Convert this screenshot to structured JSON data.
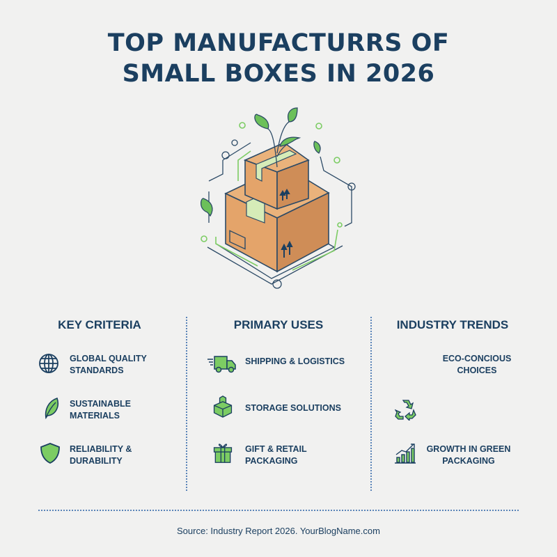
{
  "title": {
    "line1": "TOP MANUFACTURRS OF",
    "line2": "SMALL BOXES IN 2026"
  },
  "colors": {
    "navy": "#1b3f60",
    "green": "#6cc05a",
    "cardboard": "#e0a36a",
    "background": "#f1f1f0"
  },
  "columns": [
    {
      "heading": "KEY CRITERIA",
      "items": [
        {
          "icon": "globe-icon",
          "line1": "GLOBAL QUALITY",
          "line2": "STANDARDS"
        },
        {
          "icon": "leaf-icon",
          "line1": "SUSTAINABLE",
          "line2": "MATERIALS"
        },
        {
          "icon": "shield-icon",
          "line1": "RELIABILITY &",
          "line2": "DURABILITY"
        }
      ]
    },
    {
      "heading": "PRIMARY USES",
      "items": [
        {
          "icon": "delivery-truck-icon",
          "line1": "SHIPPING & LOGISTICS",
          "line2": ""
        },
        {
          "icon": "stacked-boxes-icon",
          "line1": "STORAGE SOLUTIONS",
          "line2": ""
        },
        {
          "icon": "gift-icon",
          "line1": "GIFT & RETAIL",
          "line2": "PACKAGING"
        }
      ]
    },
    {
      "heading": "INDUSTRY TRENDS",
      "items": [
        {
          "icon": "",
          "line1": "ECO-CONCIOUS",
          "line2": "CHOICES"
        },
        {
          "icon": "recycle-icon",
          "line1": "",
          "line2": ""
        },
        {
          "icon": "growth-chart-icon",
          "line1": "GROWTH IN GREEN",
          "line2": "PACKAGING"
        }
      ]
    }
  ],
  "source": "Source: Industry Report 2026. YourBlogName.com"
}
